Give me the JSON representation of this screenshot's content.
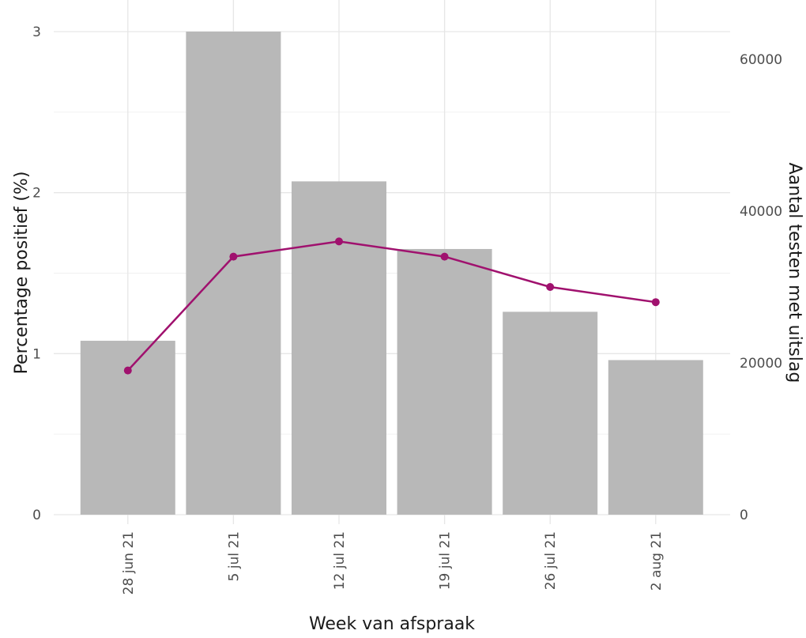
{
  "chart_data": {
    "type": "bar",
    "categories": [
      "28 jun 21",
      "5 jul 21",
      "12 jul 21",
      "19 jul 21",
      "26 jul 21",
      "2 aug 21"
    ],
    "series": [
      {
        "type": "bar",
        "axis": "left",
        "values": [
          1.08,
          3.0,
          2.07,
          1.65,
          1.26,
          0.96
        ],
        "color": "#b8b8b8"
      },
      {
        "type": "line",
        "axis": "right",
        "values": [
          19000,
          34000,
          36000,
          34000,
          30000,
          28000
        ],
        "color": "#a0116e"
      }
    ],
    "xlabel": "Week van afspraak",
    "ylabel": "Percentage positief (%)",
    "y2label": "Aantal testen met uitslag",
    "ylim": [
      0,
      3
    ],
    "y2lim": [
      0,
      64000
    ],
    "yticks": [
      0,
      1,
      2,
      3
    ],
    "y2ticks": [
      0,
      20000,
      40000,
      60000
    ],
    "grid": true
  }
}
